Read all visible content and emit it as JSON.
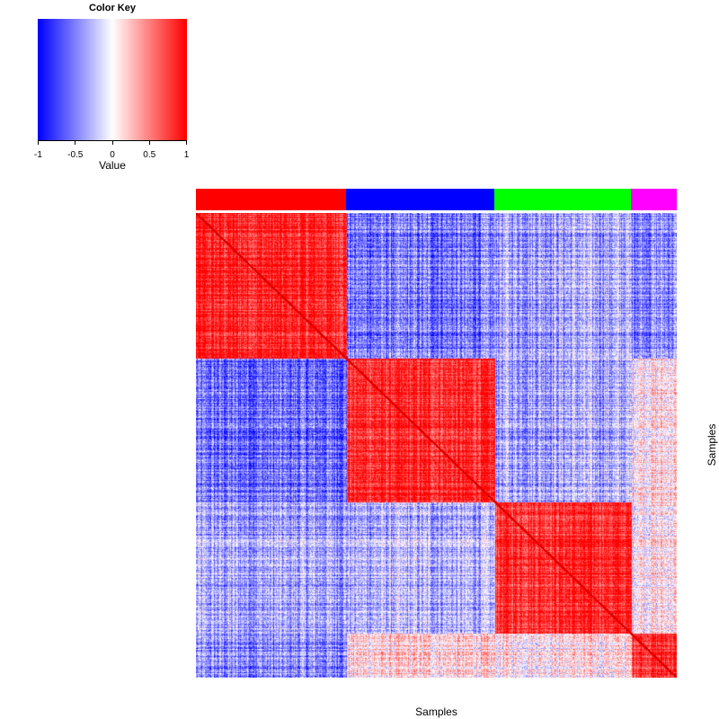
{
  "chart_data": {
    "type": "heatmap",
    "description_of_values": "sample-sample correlation",
    "color_key": {
      "title": "Color Key",
      "xlabel": "Value",
      "range": [
        -1,
        1
      ],
      "ticks": [
        "-1",
        "-0.5",
        "0",
        "0.5",
        "1"
      ],
      "tick_values": [
        -1,
        -0.5,
        0,
        0.5,
        1
      ],
      "colors": [
        "#0000ff",
        "#ffffff",
        "#ff0000"
      ]
    },
    "xlabel": "Samples",
    "ylabel": "Samples",
    "groups": [
      {
        "color": "#ff0000",
        "fraction": 0.313
      },
      {
        "color": "#0000ff",
        "fraction": 0.308
      },
      {
        "color": "#00ff00",
        "fraction": 0.284
      },
      {
        "color": "#ff00ff",
        "fraction": 0.095
      }
    ],
    "mean_correlation": [
      [
        1.0,
        -0.55,
        -0.35,
        -0.45
      ],
      [
        -0.55,
        1.0,
        -0.3,
        0.15
      ],
      [
        -0.35,
        -0.3,
        1.0,
        0.1
      ],
      [
        -0.45,
        0.15,
        0.1,
        1.0
      ]
    ],
    "diagonal_value": 1.0
  }
}
